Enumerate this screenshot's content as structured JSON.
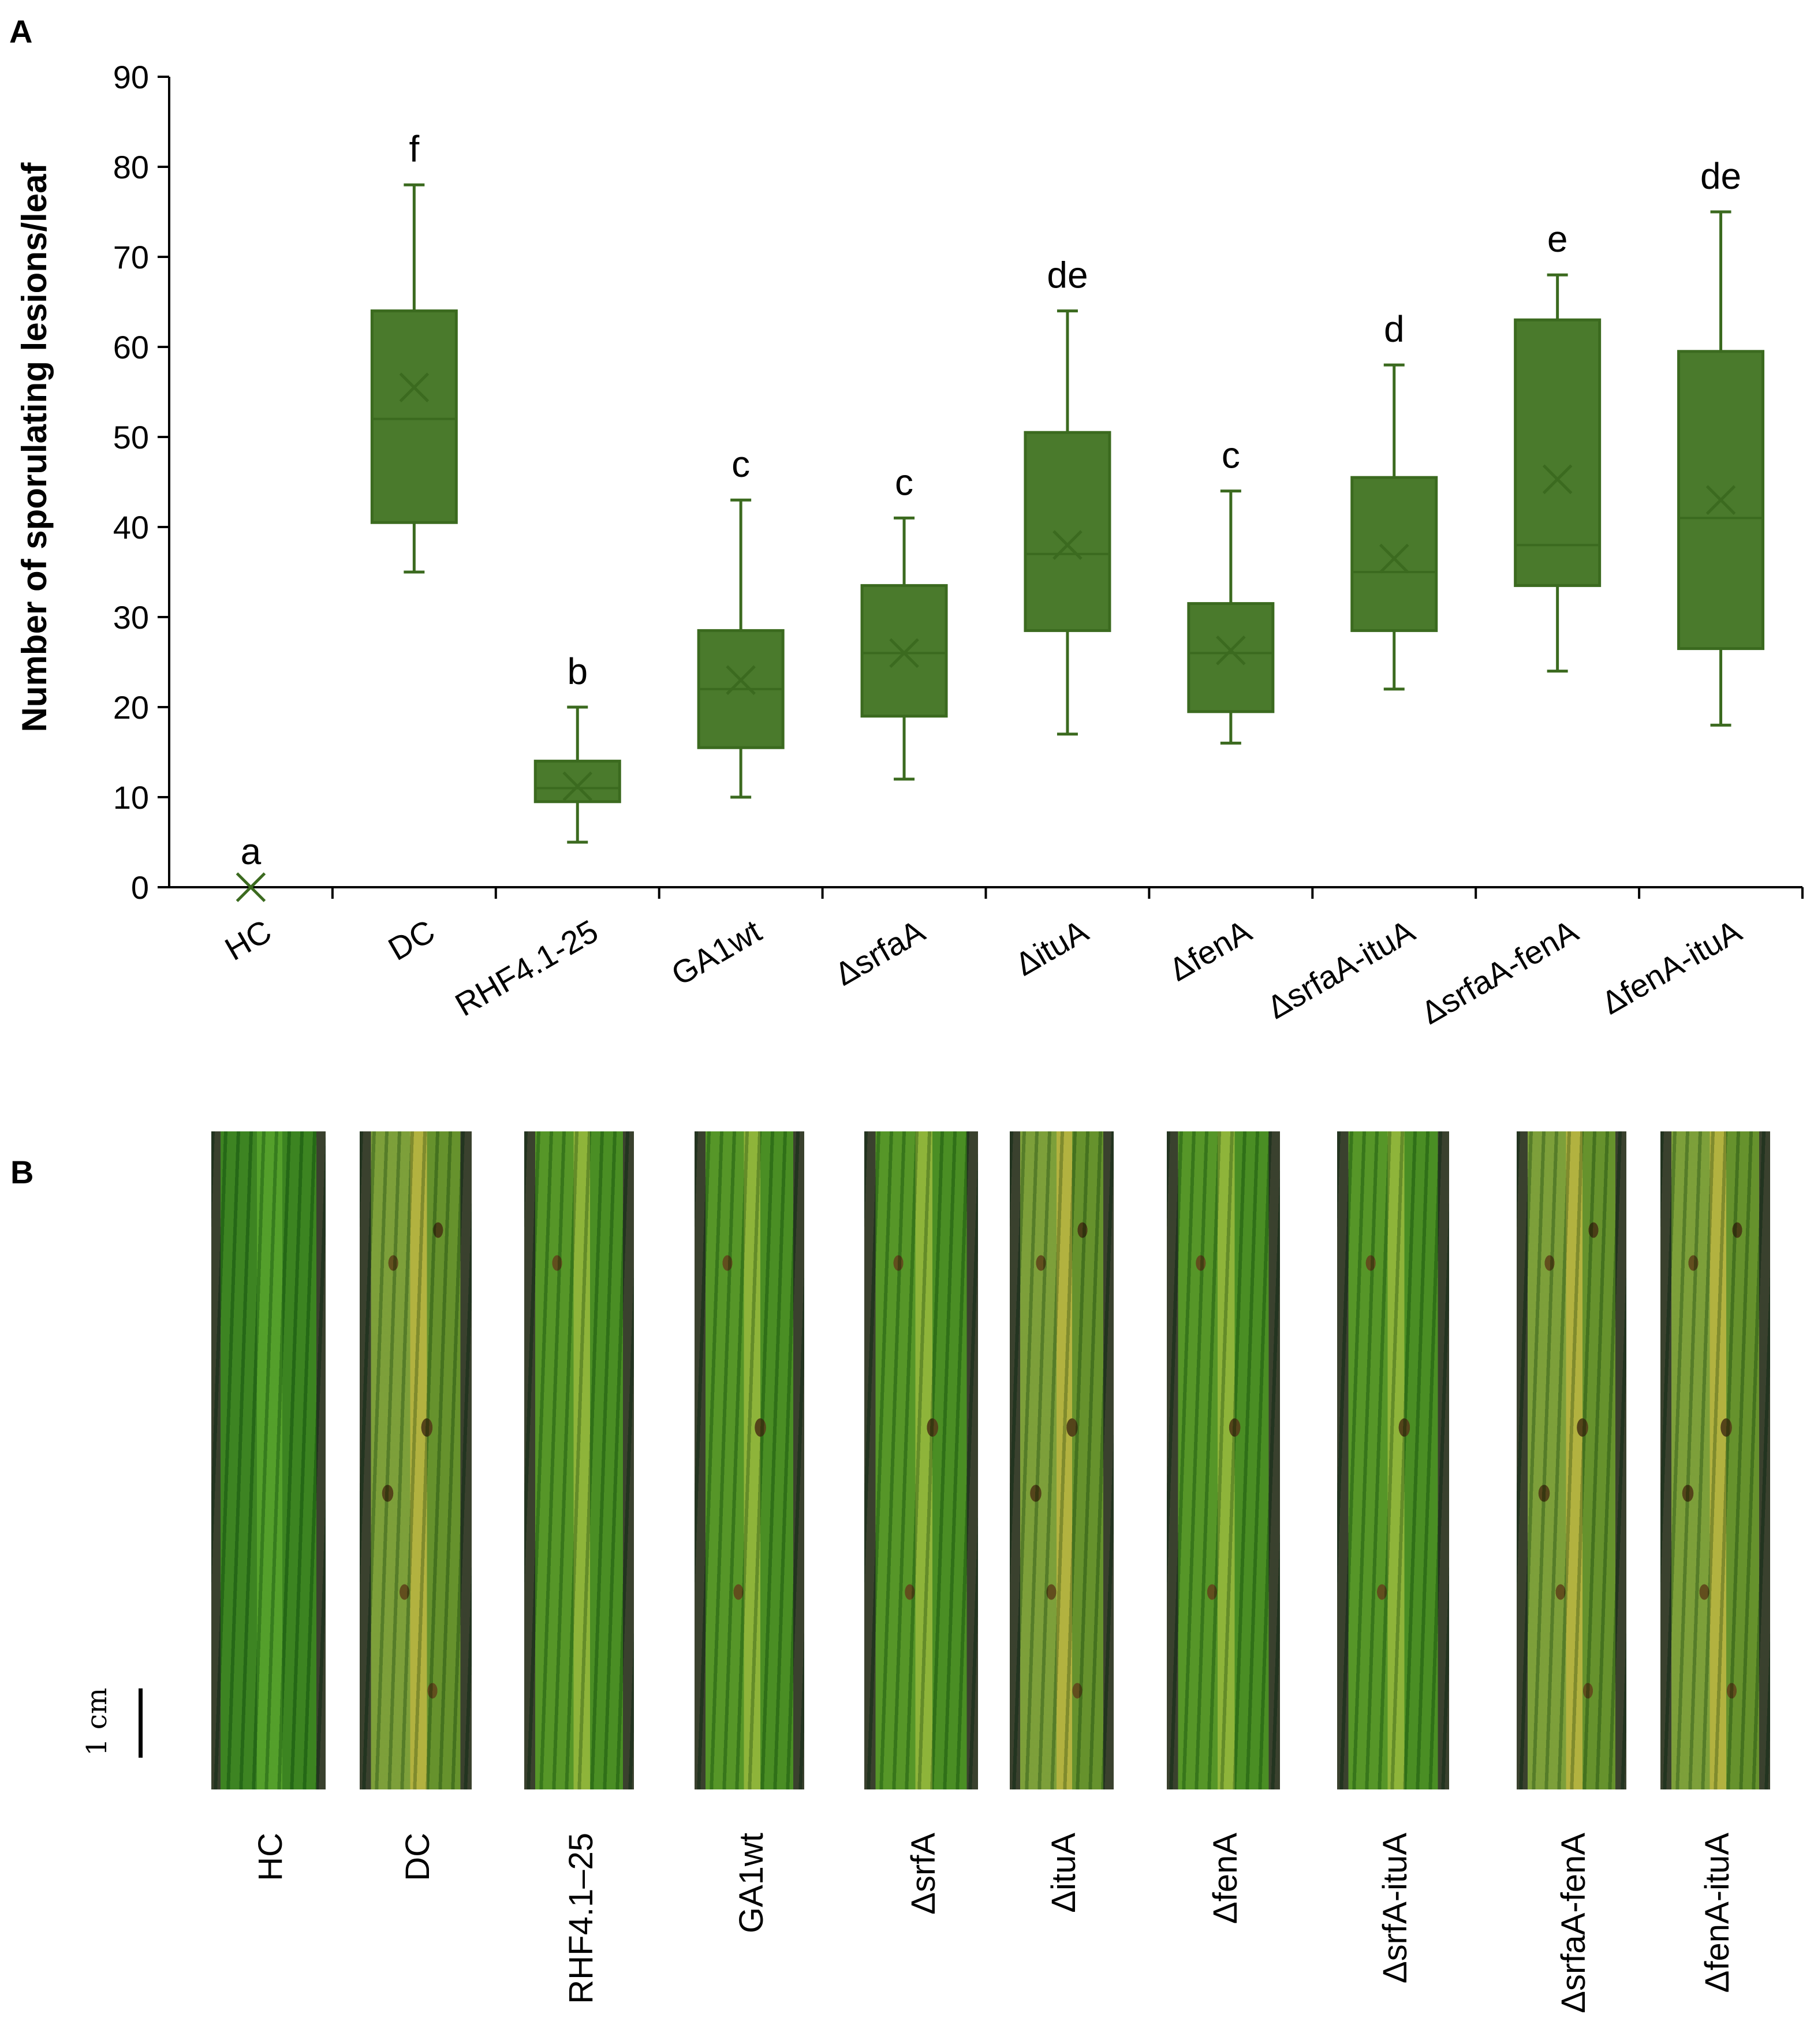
{
  "panels": {
    "a_label": "A",
    "b_label": "B"
  },
  "colors": {
    "box_fill": "#4a7a2c",
    "box_stroke": "#3b6a1f",
    "axis": "#000000"
  },
  "chart_data": {
    "type": "boxplot",
    "ylabel": "Number of sporulating lesions/leaf",
    "xlabel": "",
    "ylim": [
      0,
      90
    ],
    "yticks": [
      0,
      10,
      20,
      30,
      40,
      50,
      60,
      70,
      80,
      90
    ],
    "categories": [
      "HC",
      "DC",
      "RHF4.1-25",
      "GA1wt",
      "ΔsrfaA",
      "ΔituA",
      "ΔfenA",
      "ΔsrfaA-ituA",
      "ΔsrfaA-fenA",
      "ΔfenA-ituA"
    ],
    "boxes": [
      {
        "min": 0,
        "q1": 0,
        "median": 0,
        "q3": 0,
        "max": 0,
        "mean": 0,
        "letter": "a"
      },
      {
        "min": 35,
        "q1": 40.5,
        "median": 52,
        "q3": 64,
        "max": 78,
        "mean": 55.5,
        "letter": "f"
      },
      {
        "min": 5,
        "q1": 9.5,
        "median": 11,
        "q3": 14,
        "max": 20,
        "mean": 11.2,
        "letter": "b"
      },
      {
        "min": 10,
        "q1": 15.5,
        "median": 22,
        "q3": 28.5,
        "max": 43,
        "mean": 23,
        "letter": "c"
      },
      {
        "min": 12,
        "q1": 19,
        "median": 26,
        "q3": 33.5,
        "max": 41,
        "mean": 26,
        "letter": "c"
      },
      {
        "min": 17,
        "q1": 28.5,
        "median": 37,
        "q3": 50.5,
        "max": 64,
        "mean": 38,
        "letter": "de"
      },
      {
        "min": 16,
        "q1": 19.5,
        "median": 26,
        "q3": 31.5,
        "max": 44,
        "mean": 26.3,
        "letter": "c"
      },
      {
        "min": 22,
        "q1": 28.5,
        "median": 35,
        "q3": 45.5,
        "max": 58,
        "mean": 36.5,
        "letter": "d"
      },
      {
        "min": 24,
        "q1": 33.5,
        "median": 38,
        "q3": 63,
        "max": 68,
        "mean": 45.3,
        "letter": "e"
      },
      {
        "min": 18,
        "q1": 26.5,
        "median": 41,
        "q3": 59.5,
        "max": 75,
        "mean": 43,
        "letter": "de"
      }
    ]
  },
  "leaves": {
    "labels": [
      "HC",
      "DC",
      "RHF4.1–25",
      "GA1wt",
      "ΔsrfA",
      "ΔituA",
      "ΔfenA",
      "ΔsrfA-ituA",
      "ΔsrfaA-fenA",
      "ΔfenA-ituA"
    ],
    "scale_label": "1 cm"
  }
}
